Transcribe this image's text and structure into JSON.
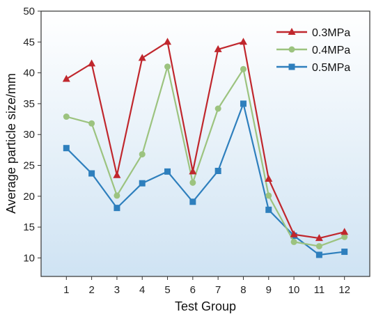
{
  "chart_data": {
    "type": "line",
    "xlabel": "Test Group",
    "ylabel": "Average particle size/mm",
    "categories": [
      "1",
      "2",
      "3",
      "4",
      "5",
      "6",
      "7",
      "8",
      "9",
      "10",
      "11",
      "12"
    ],
    "x": [
      1,
      2,
      3,
      4,
      5,
      6,
      7,
      8,
      9,
      10,
      11,
      12
    ],
    "xlim": [
      0,
      13
    ],
    "ylim": [
      7,
      50
    ],
    "yticks": [
      10,
      15,
      20,
      25,
      30,
      35,
      40,
      45,
      50
    ],
    "grid": false,
    "legend_position": "top-right",
    "background": "light-blue-gradient",
    "series": [
      {
        "name": "0.3MPa",
        "color": "#c0272d",
        "marker": "triangle",
        "values": [
          39.0,
          41.5,
          23.4,
          42.4,
          45.0,
          24.0,
          43.8,
          45.0,
          22.8,
          13.8,
          13.2,
          14.2
        ]
      },
      {
        "name": "0.4MPa",
        "color": "#9cc37f",
        "marker": "circle",
        "values": [
          32.9,
          31.8,
          20.1,
          26.8,
          41.0,
          22.2,
          34.2,
          40.6,
          20.1,
          12.6,
          11.9,
          13.4
        ]
      },
      {
        "name": "0.5MPa",
        "color": "#2e7fbd",
        "marker": "square",
        "values": [
          27.8,
          23.7,
          18.1,
          22.1,
          24.0,
          19.1,
          24.1,
          35.0,
          17.8,
          13.6,
          10.5,
          11.0
        ]
      }
    ]
  }
}
